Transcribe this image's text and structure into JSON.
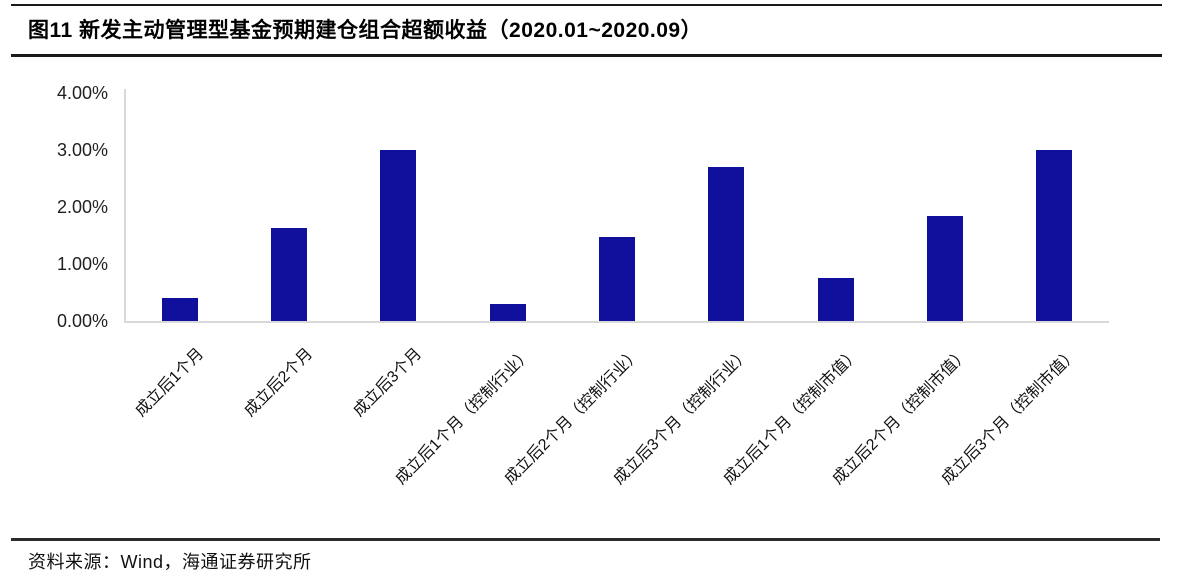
{
  "figure": {
    "title": "图11 新发主动管理型基金预期建仓组合超额收益（2020.01~2020.09）",
    "source": "资料来源：Wind，海通证券研究所"
  },
  "chart_data": {
    "type": "bar",
    "title": "新发主动管理型基金预期建仓组合超额收益（2020.01~2020.09）",
    "categories": [
      "成立后1个月",
      "成立后2个月",
      "成立后3个月",
      "成立后1个月（控制行业）",
      "成立后2个月（控制行业）",
      "成立后3个月（控制行业）",
      "成立后1个月（控制市值）",
      "成立后2个月（控制市值）",
      "成立后3个月（控制市值）"
    ],
    "values": [
      0.4,
      1.63,
      3.0,
      0.3,
      1.47,
      2.7,
      0.75,
      1.85,
      3.0
    ],
    "value_unit": "%",
    "ylim": [
      0,
      4
    ],
    "ytick_values": [
      4,
      3,
      2,
      1,
      0
    ],
    "ytick_labels": [
      "4.00%",
      "3.00%",
      "2.00%",
      "1.00%",
      "0.00%"
    ],
    "xlabel": "",
    "ylabel": "",
    "grid": false,
    "legend_position": "none",
    "bar_color": "#10109C",
    "axis_color": "#D9D9D9"
  }
}
